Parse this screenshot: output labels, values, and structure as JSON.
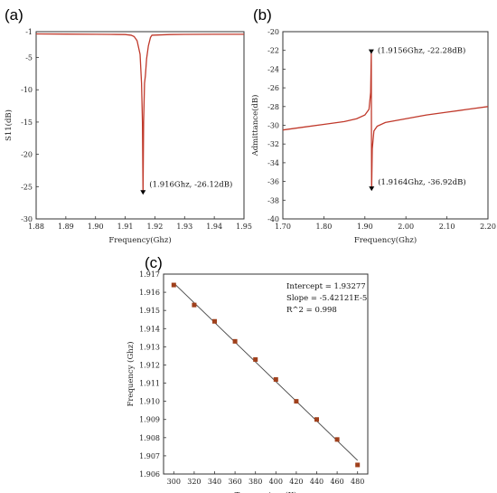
{
  "chart_data": [
    {
      "panel": "(a)",
      "type": "line",
      "xlabel": "Frequency(Ghz)",
      "ylabel": "S11(dB)",
      "xlim": [
        1.88,
        1.95
      ],
      "ylim": [
        -30,
        -1
      ],
      "x_ticks": [
        1.88,
        1.89,
        1.9,
        1.91,
        1.92,
        1.93,
        1.94,
        1.95
      ],
      "x_tick_labels": [
        "1.88",
        "1.89",
        "1.90",
        "1.91",
        "1.92",
        "1.93",
        "1.94",
        "1.95"
      ],
      "y_ticks": [
        -1,
        -5,
        -10,
        -15,
        -20,
        -25,
        -30
      ],
      "y_tick_labels": [
        "-1",
        "-5",
        "-10",
        "-15",
        "-20",
        "-25",
        "-30"
      ],
      "series": [
        {
          "color": "#c0392b",
          "points": [
            [
              1.88,
              -1.35
            ],
            [
              1.89,
              -1.38
            ],
            [
              1.9,
              -1.4
            ],
            [
              1.905,
              -1.42
            ],
            [
              1.91,
              -1.45
            ],
            [
              1.912,
              -1.55
            ],
            [
              1.913,
              -1.75
            ],
            [
              1.914,
              -2.4
            ],
            [
              1.915,
              -4.5
            ],
            [
              1.9155,
              -9.0
            ],
            [
              1.9158,
              -15.0
            ],
            [
              1.916,
              -26.12
            ],
            [
              1.9162,
              -15.0
            ],
            [
              1.9165,
              -9.0
            ],
            [
              1.9168,
              -7.8
            ],
            [
              1.9172,
              -5.2
            ],
            [
              1.9178,
              -3.2
            ],
            [
              1.9185,
              -1.9
            ],
            [
              1.919,
              -1.55
            ],
            [
              1.925,
              -1.45
            ],
            [
              1.93,
              -1.42
            ],
            [
              1.94,
              -1.4
            ],
            [
              1.95,
              -1.4
            ]
          ]
        }
      ],
      "annotations": [
        {
          "text": "(1.916Ghz, -26.12dB)",
          "x": 1.916,
          "y": -26.12,
          "marker": "down-triangle"
        }
      ]
    },
    {
      "panel": "(b)",
      "type": "line",
      "xlabel": "Frequency(Ghz)",
      "ylabel": "Admittance(dB)",
      "xlim": [
        1.7,
        2.2
      ],
      "ylim": [
        -40,
        -20
      ],
      "x_ticks": [
        1.7,
        1.8,
        1.9,
        2.0,
        2.1,
        2.2
      ],
      "x_tick_labels": [
        "1.70",
        "1.80",
        "1.90",
        "2.00",
        "2.10",
        "2.20"
      ],
      "y_ticks": [
        -20,
        -22,
        -24,
        -26,
        -28,
        -30,
        -32,
        -34,
        -36,
        -38,
        -40
      ],
      "y_tick_labels": [
        "-20",
        "-22",
        "-24",
        "-26",
        "-28",
        "-30",
        "-32",
        "-34",
        "-36",
        "-38",
        "-40"
      ],
      "series": [
        {
          "color": "#c0392b",
          "points": [
            [
              1.7,
              -30.5
            ],
            [
              1.75,
              -30.2
            ],
            [
              1.8,
              -29.9
            ],
            [
              1.85,
              -29.6
            ],
            [
              1.88,
              -29.3
            ],
            [
              1.9,
              -28.9
            ],
            [
              1.91,
              -28.3
            ],
            [
              1.914,
              -26.5
            ],
            [
              1.9156,
              -22.28
            ],
            [
              1.916,
              -30.5
            ],
            [
              1.9164,
              -36.92
            ],
            [
              1.918,
              -32.5
            ],
            [
              1.922,
              -30.6
            ],
            [
              1.93,
              -30.1
            ],
            [
              1.95,
              -29.7
            ],
            [
              2.0,
              -29.3
            ],
            [
              2.05,
              -28.9
            ],
            [
              2.1,
              -28.6
            ],
            [
              2.15,
              -28.3
            ],
            [
              2.2,
              -28.0
            ]
          ]
        }
      ],
      "annotations": [
        {
          "text": "(1.9156Ghz, -22.28dB)",
          "x": 1.9156,
          "y": -22.28,
          "marker": "down-triangle"
        },
        {
          "text": "(1.9164Ghz, -36.92dB)",
          "x": 1.9164,
          "y": -36.92,
          "marker": "down-triangle"
        }
      ]
    },
    {
      "panel": "(c)",
      "type": "scatter",
      "xlabel": "Temperature(K)",
      "ylabel": "Frequency (Ghz)",
      "xlim": [
        290,
        490
      ],
      "ylim": [
        1.906,
        1.917
      ],
      "x_ticks": [
        300,
        320,
        340,
        360,
        380,
        400,
        420,
        440,
        460,
        480
      ],
      "x_tick_labels": [
        "300",
        "320",
        "340",
        "360",
        "380",
        "400",
        "420",
        "440",
        "460",
        "480"
      ],
      "y_ticks": [
        1.906,
        1.907,
        1.908,
        1.909,
        1.91,
        1.911,
        1.912,
        1.913,
        1.914,
        1.915,
        1.916,
        1.917
      ],
      "y_tick_labels": [
        "1.906",
        "1.907",
        "1.908",
        "1.909",
        "1.910",
        "1.911",
        "1.912",
        "1.913",
        "1.914",
        "1.915",
        "1.916",
        "1.917"
      ],
      "series": [
        {
          "color": "#a0401c",
          "points": [
            [
              300,
              1.9164
            ],
            [
              320,
              1.9153
            ],
            [
              340,
              1.9144
            ],
            [
              360,
              1.9133
            ],
            [
              380,
              1.9123
            ],
            [
              400,
              1.9112
            ],
            [
              420,
              1.91
            ],
            [
              440,
              1.909
            ],
            [
              460,
              1.9079
            ],
            [
              480,
              1.9065
            ]
          ]
        }
      ],
      "fit": {
        "intercept": 1.93277,
        "slope": -5.42121e-05
      },
      "annotation_lines": [
        "Intercept = 1.93277",
        "Slope = -5.42121E-5",
        "R^2 = 0.998"
      ]
    }
  ]
}
